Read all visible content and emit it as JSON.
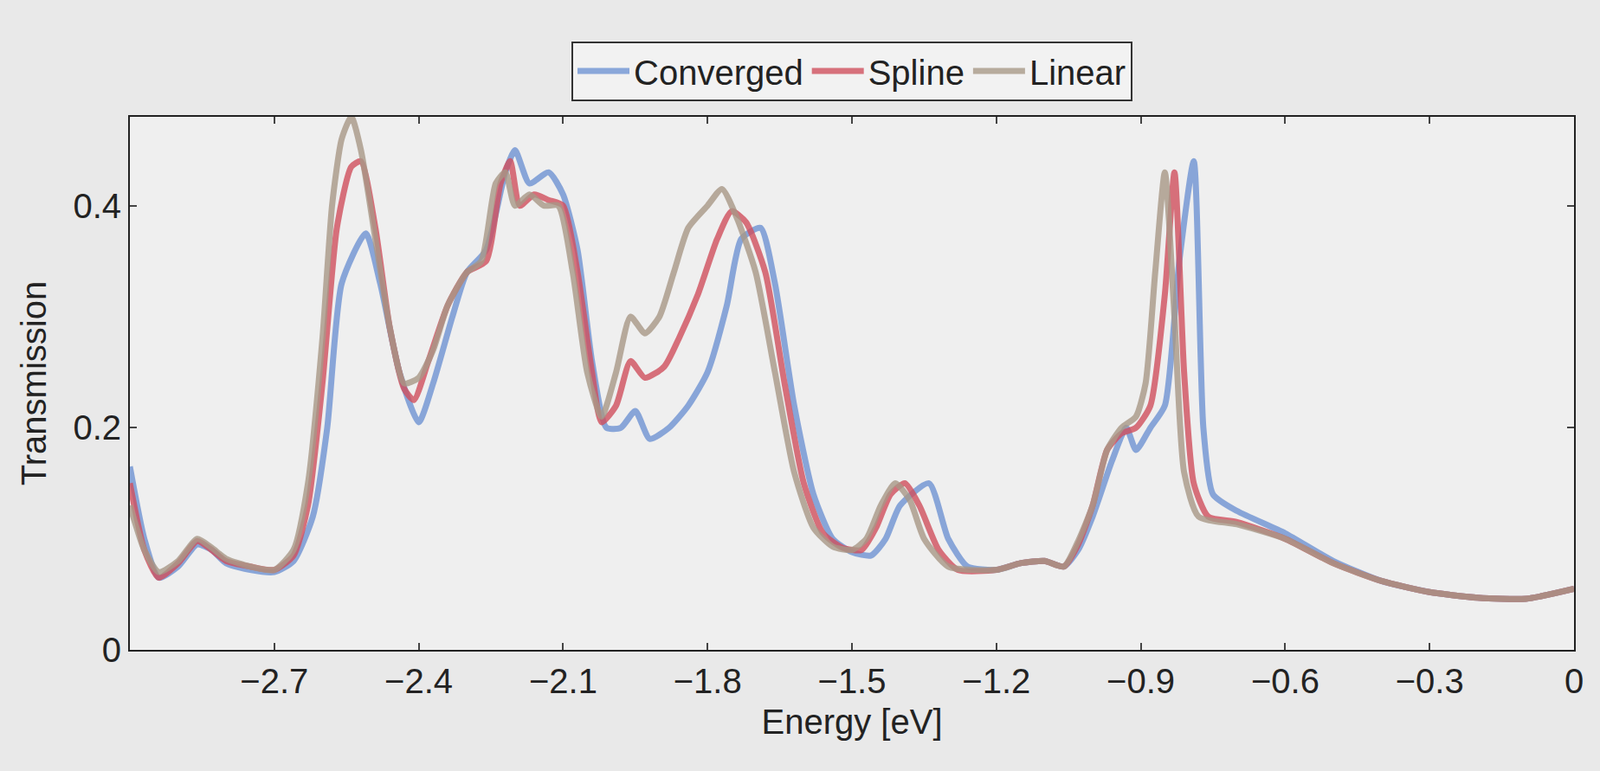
{
  "chart_data": {
    "type": "line",
    "x_label": "Energy [eV]",
    "y_label": "Transmission",
    "xlim": [
      -3.0,
      0
    ],
    "ylim": [
      0,
      0.48
    ],
    "xticks": [
      {
        "value": -2.7,
        "label": "−2.7"
      },
      {
        "value": -2.4,
        "label": "−2.4"
      },
      {
        "value": -2.1,
        "label": "−2.1"
      },
      {
        "value": -1.8,
        "label": "−1.8"
      },
      {
        "value": -1.5,
        "label": "−1.5"
      },
      {
        "value": -1.2,
        "label": "−1.2"
      },
      {
        "value": -0.9,
        "label": "−0.9"
      },
      {
        "value": -0.6,
        "label": "−0.6"
      },
      {
        "value": -0.3,
        "label": "−0.3"
      },
      0
    ],
    "yticks": [
      0,
      0.2,
      0.4
    ],
    "grid": false,
    "legend": "top",
    "series": [
      {
        "name": "Converged",
        "color": "#6f93d3",
        "x": [
          -3.0,
          -2.97,
          -2.94,
          -2.9,
          -2.86,
          -2.83,
          -2.8,
          -2.75,
          -2.7,
          -2.66,
          -2.62,
          -2.59,
          -2.56,
          -2.51,
          -2.48,
          -2.44,
          -2.4,
          -2.37,
          -2.33,
          -2.3,
          -2.26,
          -2.22,
          -2.2,
          -2.17,
          -2.13,
          -2.1,
          -2.07,
          -2.04,
          -2.01,
          -1.98,
          -1.95,
          -1.92,
          -1.88,
          -1.84,
          -1.8,
          -1.76,
          -1.73,
          -1.69,
          -1.66,
          -1.62,
          -1.58,
          -1.54,
          -1.5,
          -1.46,
          -1.43,
          -1.4,
          -1.34,
          -1.3,
          -1.26,
          -1.2,
          -1.15,
          -1.1,
          -1.06,
          -1.03,
          -1.0,
          -0.96,
          -0.93,
          -0.91,
          -0.88,
          -0.85,
          -0.82,
          -0.79,
          -0.77,
          -0.75,
          -0.7,
          -0.6,
          -0.5,
          -0.4,
          -0.3,
          -0.2,
          -0.1,
          0
        ],
        "values": [
          0.165,
          0.1,
          0.065,
          0.075,
          0.095,
          0.09,
          0.078,
          0.072,
          0.07,
          0.08,
          0.12,
          0.2,
          0.33,
          0.375,
          0.33,
          0.25,
          0.205,
          0.24,
          0.3,
          0.34,
          0.36,
          0.43,
          0.45,
          0.42,
          0.43,
          0.41,
          0.36,
          0.26,
          0.2,
          0.2,
          0.215,
          0.19,
          0.2,
          0.22,
          0.25,
          0.31,
          0.37,
          0.38,
          0.33,
          0.22,
          0.14,
          0.1,
          0.088,
          0.085,
          0.1,
          0.13,
          0.15,
          0.1,
          0.075,
          0.072,
          0.078,
          0.08,
          0.075,
          0.09,
          0.12,
          0.17,
          0.2,
          0.18,
          0.2,
          0.22,
          0.35,
          0.44,
          0.2,
          0.14,
          0.125,
          0.105,
          0.08,
          0.062,
          0.052,
          0.047,
          0.046,
          0.055
        ]
      },
      {
        "name": "Spline",
        "color": "#d0505e",
        "x": [
          -3.0,
          -2.97,
          -2.94,
          -2.9,
          -2.86,
          -2.83,
          -2.8,
          -2.75,
          -2.7,
          -2.66,
          -2.63,
          -2.6,
          -2.57,
          -2.54,
          -2.52,
          -2.49,
          -2.46,
          -2.43,
          -2.41,
          -2.38,
          -2.34,
          -2.3,
          -2.26,
          -2.23,
          -2.21,
          -2.19,
          -2.16,
          -2.13,
          -2.1,
          -2.07,
          -2.04,
          -2.02,
          -1.99,
          -1.96,
          -1.93,
          -1.89,
          -1.86,
          -1.82,
          -1.78,
          -1.75,
          -1.72,
          -1.68,
          -1.64,
          -1.6,
          -1.56,
          -1.52,
          -1.48,
          -1.45,
          -1.42,
          -1.39,
          -1.36,
          -1.32,
          -1.28,
          -1.2,
          -1.15,
          -1.1,
          -1.06,
          -1.03,
          -1.0,
          -0.97,
          -0.94,
          -0.91,
          -0.88,
          -0.85,
          -0.83,
          -0.81,
          -0.79,
          -0.76,
          -0.7,
          -0.6,
          -0.5,
          -0.4,
          -0.3,
          -0.2,
          -0.1,
          0
        ],
        "values": [
          0.15,
          0.09,
          0.065,
          0.078,
          0.098,
          0.09,
          0.08,
          0.075,
          0.072,
          0.085,
          0.13,
          0.24,
          0.38,
          0.435,
          0.44,
          0.38,
          0.29,
          0.235,
          0.225,
          0.26,
          0.31,
          0.34,
          0.35,
          0.42,
          0.44,
          0.4,
          0.41,
          0.405,
          0.4,
          0.34,
          0.25,
          0.205,
          0.22,
          0.26,
          0.245,
          0.255,
          0.28,
          0.32,
          0.37,
          0.395,
          0.385,
          0.34,
          0.24,
          0.15,
          0.105,
          0.092,
          0.09,
          0.11,
          0.14,
          0.15,
          0.13,
          0.09,
          0.072,
          0.072,
          0.078,
          0.08,
          0.075,
          0.095,
          0.13,
          0.18,
          0.195,
          0.2,
          0.22,
          0.32,
          0.43,
          0.25,
          0.15,
          0.12,
          0.115,
          0.1,
          0.078,
          0.062,
          0.052,
          0.047,
          0.046,
          0.055
        ]
      },
      {
        "name": "Linear",
        "color": "#a89887",
        "x": [
          -3.0,
          -2.97,
          -2.94,
          -2.9,
          -2.86,
          -2.83,
          -2.8,
          -2.75,
          -2.7,
          -2.66,
          -2.63,
          -2.6,
          -2.58,
          -2.56,
          -2.54,
          -2.52,
          -2.49,
          -2.46,
          -2.43,
          -2.4,
          -2.37,
          -2.34,
          -2.3,
          -2.27,
          -2.24,
          -2.22,
          -2.2,
          -2.17,
          -2.14,
          -2.11,
          -2.08,
          -2.05,
          -2.02,
          -1.99,
          -1.96,
          -1.93,
          -1.9,
          -1.87,
          -1.84,
          -1.8,
          -1.77,
          -1.74,
          -1.7,
          -1.66,
          -1.62,
          -1.58,
          -1.54,
          -1.5,
          -1.47,
          -1.44,
          -1.41,
          -1.38,
          -1.35,
          -1.3,
          -1.2,
          -1.15,
          -1.1,
          -1.06,
          -1.03,
          -1.0,
          -0.97,
          -0.94,
          -0.91,
          -0.89,
          -0.87,
          -0.85,
          -0.83,
          -0.81,
          -0.78,
          -0.7,
          -0.6,
          -0.5,
          -0.4,
          -0.3,
          -0.2,
          -0.1,
          0
        ],
        "values": [
          0.13,
          0.09,
          0.07,
          0.08,
          0.1,
          0.092,
          0.082,
          0.075,
          0.072,
          0.09,
          0.15,
          0.28,
          0.4,
          0.46,
          0.48,
          0.45,
          0.37,
          0.29,
          0.24,
          0.245,
          0.27,
          0.31,
          0.34,
          0.35,
          0.42,
          0.43,
          0.4,
          0.41,
          0.4,
          0.4,
          0.34,
          0.25,
          0.21,
          0.25,
          0.3,
          0.285,
          0.3,
          0.34,
          0.38,
          0.4,
          0.415,
          0.39,
          0.34,
          0.25,
          0.16,
          0.11,
          0.093,
          0.09,
          0.1,
          0.13,
          0.15,
          0.135,
          0.1,
          0.075,
          0.072,
          0.078,
          0.08,
          0.075,
          0.098,
          0.13,
          0.18,
          0.2,
          0.21,
          0.24,
          0.34,
          0.43,
          0.3,
          0.16,
          0.12,
          0.113,
          0.1,
          0.078,
          0.062,
          0.052,
          0.047,
          0.046,
          0.055
        ]
      }
    ]
  }
}
